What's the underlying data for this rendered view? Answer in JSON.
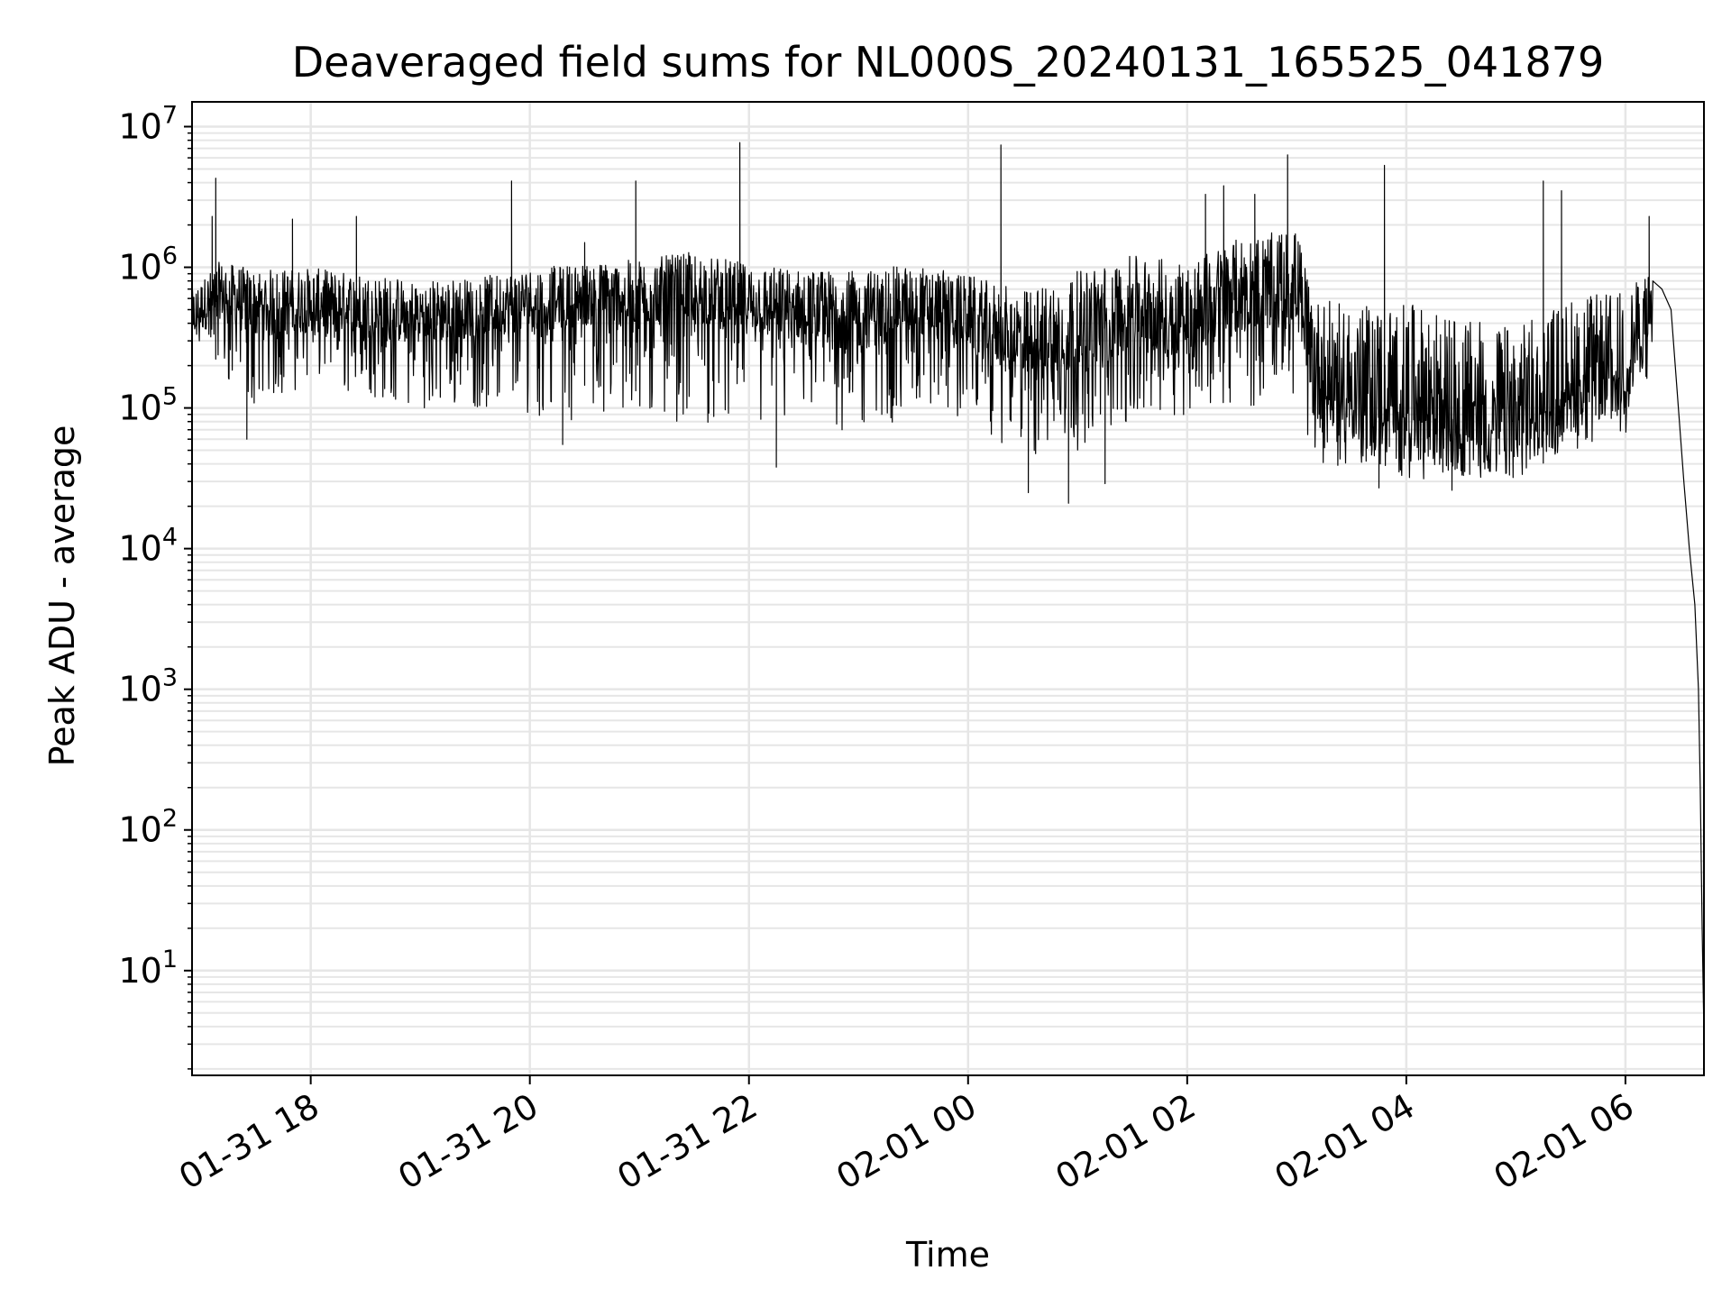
{
  "chart_data": {
    "type": "line",
    "title": "Deaveraged field sums for NL000S_20240131_165525_041879",
    "xlabel": "Time",
    "ylabel": "Peak ADU - average",
    "x_scale": "time",
    "y_scale": "log",
    "xlim": [
      "2024-01-31 16:55",
      "2024-02-01 06:43"
    ],
    "ylim": [
      1.8,
      15000000
    ],
    "x_ticks": [
      "01-31 18",
      "01-31 20",
      "01-31 22",
      "02-01 00",
      "02-01 02",
      "02-01 04",
      "02-01 06"
    ],
    "x_tick_times": [
      "2024-01-31 18:00",
      "2024-01-31 20:00",
      "2024-01-31 22:00",
      "2024-02-01 00:00",
      "2024-02-01 02:00",
      "2024-02-01 04:00",
      "2024-02-01 06:00"
    ],
    "y_ticks": [
      {
        "base": "10",
        "exp": "1",
        "value": 10
      },
      {
        "base": "10",
        "exp": "2",
        "value": 100
      },
      {
        "base": "10",
        "exp": "3",
        "value": 1000
      },
      {
        "base": "10",
        "exp": "4",
        "value": 10000
      },
      {
        "base": "10",
        "exp": "5",
        "value": 100000
      },
      {
        "base": "10",
        "exp": "6",
        "value": 1000000
      },
      {
        "base": "10",
        "exp": "7",
        "value": 10000000
      }
    ],
    "grid": true,
    "line_color": "#000000",
    "grid_color": "#e6e6e6",
    "series": [
      {
        "envelope": {
          "x": [
            "2024-01-31 16:55",
            "2024-01-31 17:10",
            "2024-01-31 17:30",
            "2024-01-31 18:00",
            "2024-01-31 18:30",
            "2024-01-31 19:00",
            "2024-01-31 19:30",
            "2024-01-31 20:00",
            "2024-01-31 20:30",
            "2024-01-31 21:00",
            "2024-01-31 21:30",
            "2024-01-31 22:00",
            "2024-01-31 22:30",
            "2024-01-31 23:00",
            "2024-01-31 23:30",
            "2024-02-01 00:00",
            "2024-02-01 00:30",
            "2024-02-01 01:00",
            "2024-02-01 01:30",
            "2024-02-01 02:00",
            "2024-02-01 02:30",
            "2024-02-01 03:00",
            "2024-02-01 03:10",
            "2024-02-01 03:30",
            "2024-02-01 04:00",
            "2024-02-01 04:30",
            "2024-02-01 05:00",
            "2024-02-01 05:30",
            "2024-02-01 06:00",
            "2024-02-01 06:15"
          ],
          "median": [
            400000,
            600000,
            450000,
            500000,
            450000,
            400000,
            450000,
            500000,
            550000,
            550000,
            600000,
            500000,
            450000,
            400000,
            500000,
            400000,
            250000,
            300000,
            450000,
            400000,
            600000,
            650000,
            150000,
            120000,
            100000,
            80000,
            70000,
            150000,
            180000,
            450000
          ],
          "low": [
            300000,
            150000,
            100000,
            150000,
            120000,
            100000,
            100000,
            90000,
            80000,
            80000,
            80000,
            70000,
            70000,
            60000,
            90000,
            80000,
            40000,
            50000,
            80000,
            90000,
            100000,
            120000,
            40000,
            35000,
            32000,
            30000,
            32000,
            50000,
            60000,
            200000
          ],
          "high": [
            800000,
            1300000,
            1200000,
            1200000,
            1100000,
            1000000,
            1000000,
            1200000,
            1300000,
            1400000,
            1600000,
            1300000,
            1200000,
            1200000,
            1300000,
            1100000,
            900000,
            1300000,
            1600000,
            1500000,
            2200000,
            2500000,
            900000,
            800000,
            900000,
            700000,
            600000,
            900000,
            1000000,
            1200000
          ]
        },
        "spikes": [
          {
            "x": "2024-01-31 17:08",
            "y": 4300000
          },
          {
            "x": "2024-01-31 17:06",
            "y": 2300000
          },
          {
            "x": "2024-01-31 17:50",
            "y": 2200000
          },
          {
            "x": "2024-01-31 18:25",
            "y": 2300000
          },
          {
            "x": "2024-01-31 19:50",
            "y": 4100000
          },
          {
            "x": "2024-01-31 20:30",
            "y": 1500000
          },
          {
            "x": "2024-01-31 20:58",
            "y": 4100000
          },
          {
            "x": "2024-01-31 21:55",
            "y": 7700000
          },
          {
            "x": "2024-02-01 00:18",
            "y": 7400000
          },
          {
            "x": "2024-02-01 02:10",
            "y": 3300000
          },
          {
            "x": "2024-02-01 02:20",
            "y": 3800000
          },
          {
            "x": "2024-02-01 02:37",
            "y": 3300000
          },
          {
            "x": "2024-02-01 02:55",
            "y": 6300000
          },
          {
            "x": "2024-02-01 03:48",
            "y": 5300000
          },
          {
            "x": "2024-02-01 05:15",
            "y": 4100000
          },
          {
            "x": "2024-02-01 05:25",
            "y": 3500000
          },
          {
            "x": "2024-02-01 06:13",
            "y": 2300000
          }
        ],
        "dips": [
          {
            "x": "2024-01-31 17:25",
            "y": 60000
          },
          {
            "x": "2024-01-31 20:18",
            "y": 55000
          },
          {
            "x": "2024-01-31 22:15",
            "y": 38000
          },
          {
            "x": "2024-02-01 00:33",
            "y": 25000
          },
          {
            "x": "2024-02-01 00:55",
            "y": 21000
          },
          {
            "x": "2024-02-01 01:15",
            "y": 29000
          },
          {
            "x": "2024-02-01 03:45",
            "y": 27000
          },
          {
            "x": "2024-02-01 04:25",
            "y": 26000
          }
        ],
        "tail": {
          "x": [
            "2024-02-01 06:15",
            "2024-02-01 06:20",
            "2024-02-01 06:25",
            "2024-02-01 06:28",
            "2024-02-01 06:32",
            "2024-02-01 06:35",
            "2024-02-01 06:38",
            "2024-02-01 06:40",
            "2024-02-01 06:41",
            "2024-02-01 06:42",
            "2024-02-01 06:43"
          ],
          "y": [
            800000,
            700000,
            500000,
            150000,
            30000,
            10000,
            4000,
            1000,
            200,
            20,
            3.5
          ]
        }
      }
    ]
  }
}
